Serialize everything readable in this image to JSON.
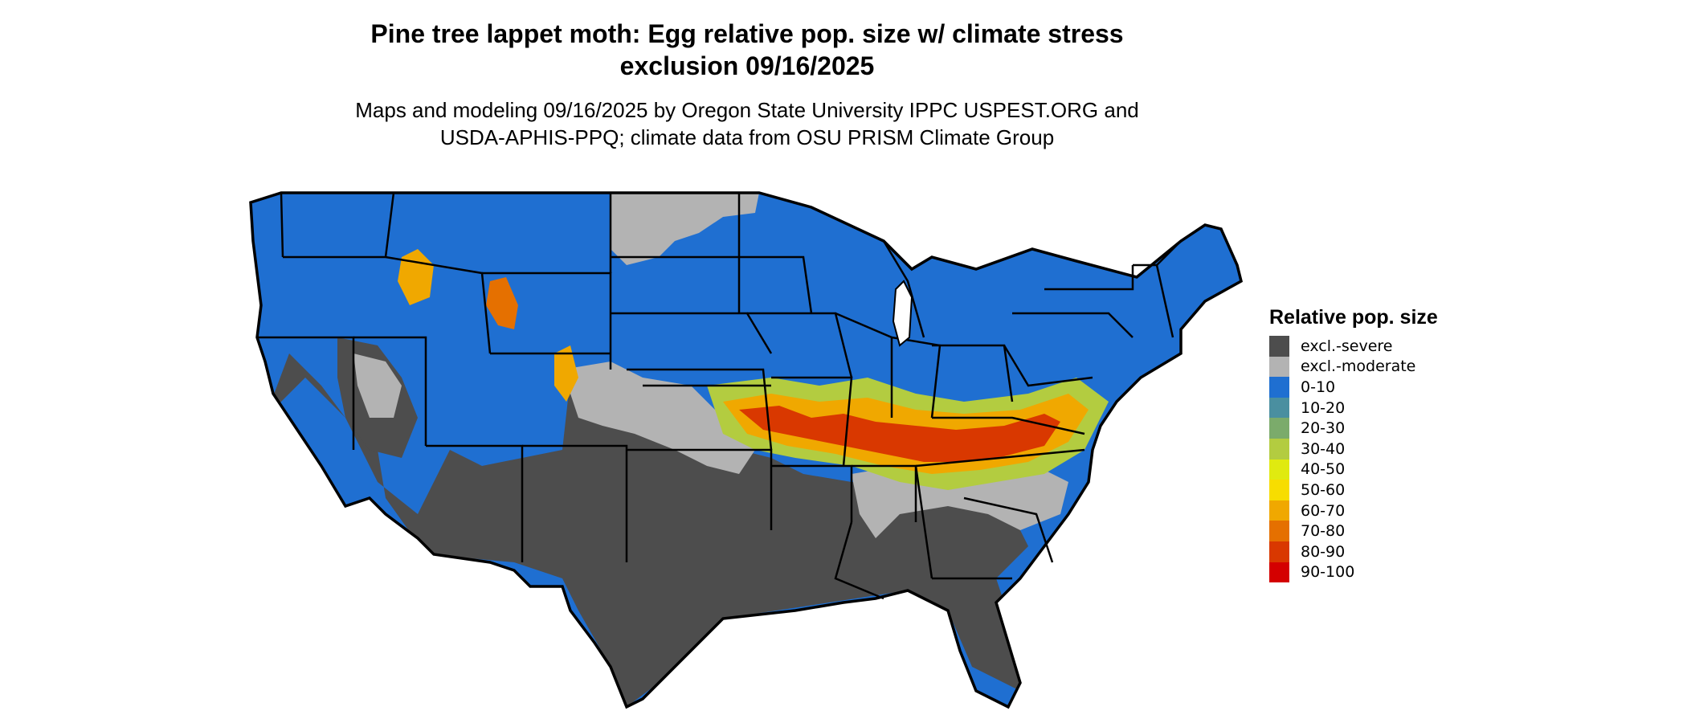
{
  "title_line1": "Pine tree lappet moth: Egg relative pop. size w/ climate stress",
  "title_line2": "exclusion 09/16/2025",
  "subtitle_line1": "Maps and modeling 09/16/2025 by Oregon State University IPPC USPEST.ORG and",
  "subtitle_line2": "USDA-APHIS-PPQ; climate data from OSU PRISM Climate Group",
  "legend": {
    "title": "Relative pop. size",
    "items": [
      {
        "label": "excl.-severe",
        "color": "#4d4d4d"
      },
      {
        "label": "excl.-moderate",
        "color": "#b3b3b3"
      },
      {
        "label": "0-10",
        "color": "#1f6fd1"
      },
      {
        "label": "10-20",
        "color": "#4a8fa0"
      },
      {
        "label": "20-30",
        "color": "#7bab6b"
      },
      {
        "label": "30-40",
        "color": "#b3cc40"
      },
      {
        "label": "40-50",
        "color": "#e0ea10"
      },
      {
        "label": "50-60",
        "color": "#f7dd00"
      },
      {
        "label": "60-70",
        "color": "#f0a800"
      },
      {
        "label": "70-80",
        "color": "#e57000"
      },
      {
        "label": "80-90",
        "color": "#d93800"
      },
      {
        "label": "90-100",
        "color": "#d40000"
      }
    ]
  }
}
